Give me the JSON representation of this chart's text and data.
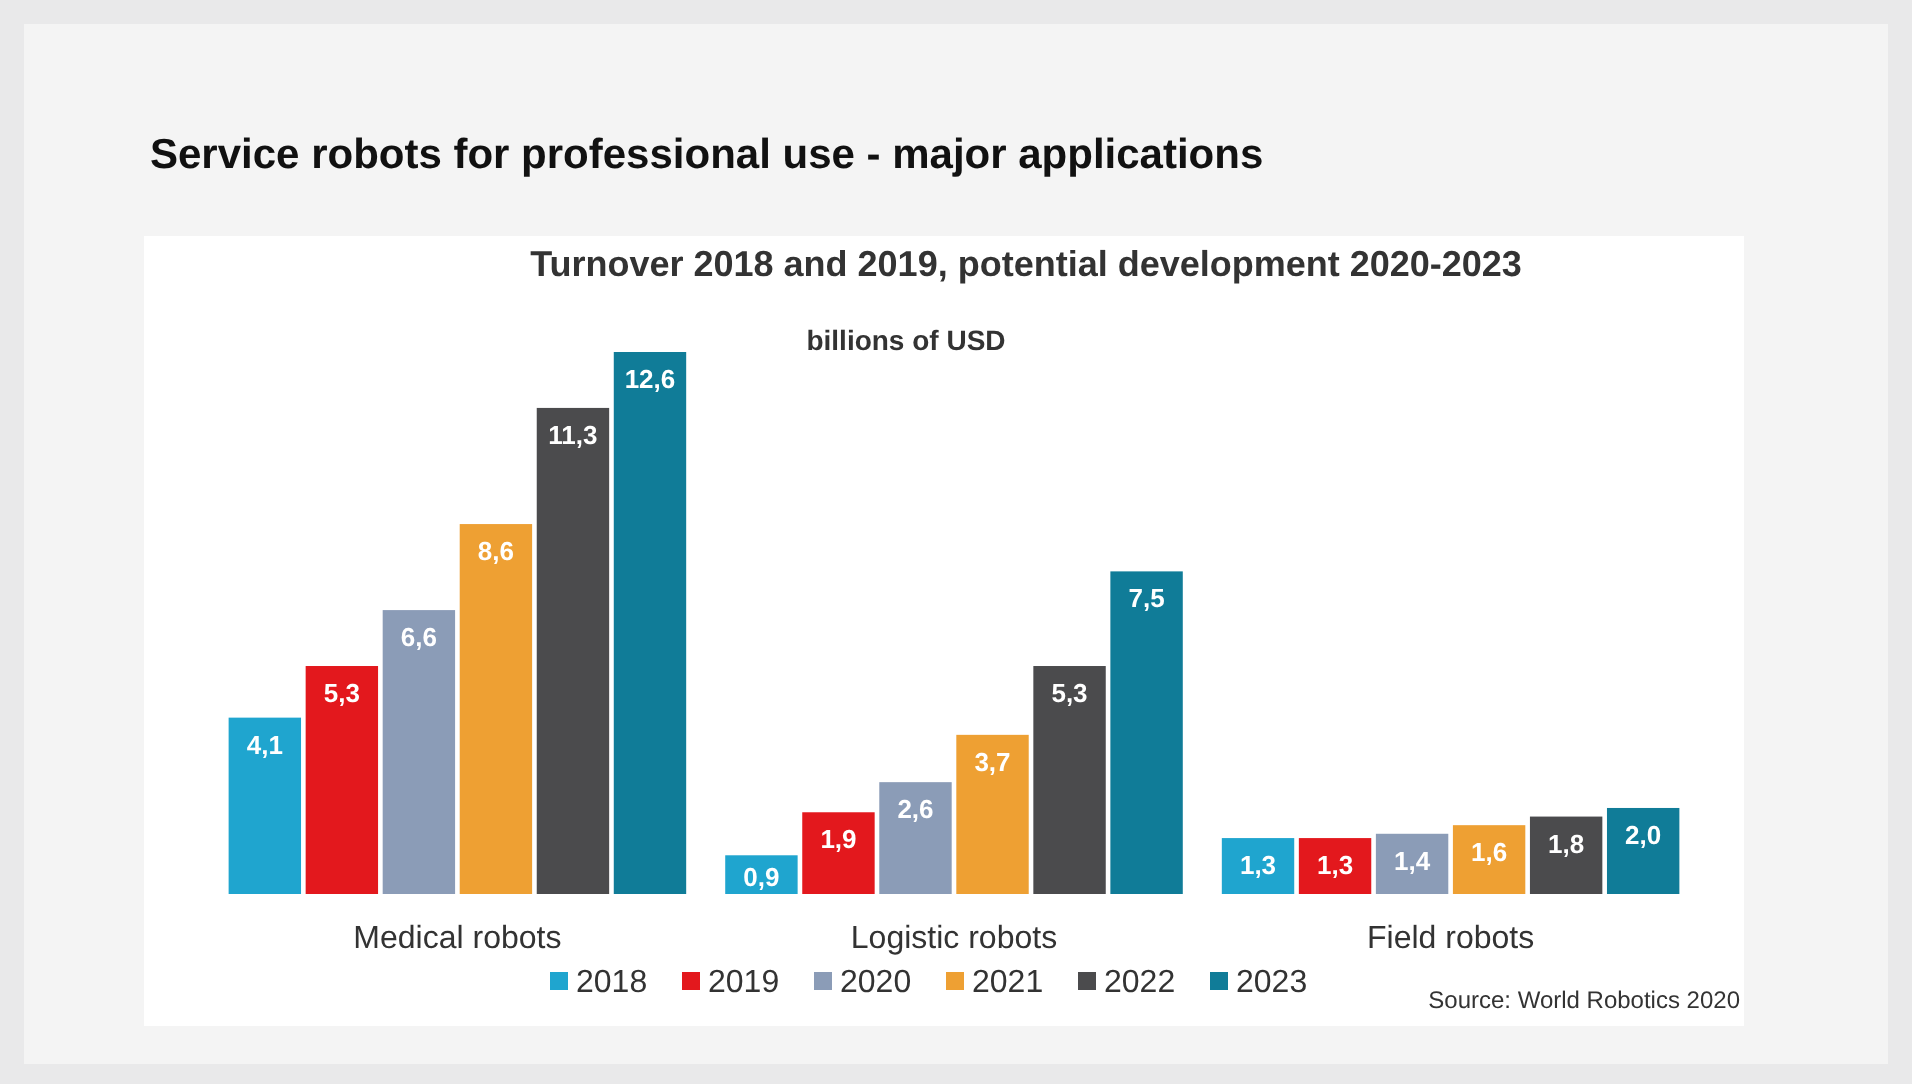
{
  "chart_data": {
    "type": "bar",
    "title": "Service robots for professional use - major applications",
    "subtitle": "Turnover 2018 and 2019, potential development 2020-2023",
    "ylabel": "billions of USD",
    "categories": [
      "Medical robots",
      "Logistic robots",
      "Field robots"
    ],
    "series": [
      {
        "name": "2018",
        "color": "#1fa5cf",
        "values": [
          4.1,
          0.9,
          1.3
        ],
        "value_labels": [
          "4,1",
          "0,9",
          "1,3"
        ]
      },
      {
        "name": "2019",
        "color": "#e3181d",
        "values": [
          5.3,
          1.9,
          1.3
        ],
        "value_labels": [
          "5,3",
          "1,9",
          "1,3"
        ]
      },
      {
        "name": "2020",
        "color": "#8b9cb7",
        "values": [
          6.6,
          2.6,
          1.4
        ],
        "value_labels": [
          "6,6",
          "2,6",
          "1,4"
        ]
      },
      {
        "name": "2021",
        "color": "#eea033",
        "values": [
          8.6,
          3.7,
          1.6
        ],
        "value_labels": [
          "8,6",
          "3,7",
          "1,6"
        ]
      },
      {
        "name": "2022",
        "color": "#4b4b4d",
        "values": [
          11.3,
          5.3,
          1.8
        ],
        "value_labels": [
          "11,3",
          "5,3",
          "1,8"
        ]
      },
      {
        "name": "2023",
        "color": "#107c98",
        "values": [
          12.6,
          7.5,
          2.0
        ],
        "value_labels": [
          "12,6",
          "7,5",
          "2,0"
        ]
      }
    ],
    "legend": "bottom",
    "annotations": [
      "Source: World Robotics 2020"
    ]
  }
}
